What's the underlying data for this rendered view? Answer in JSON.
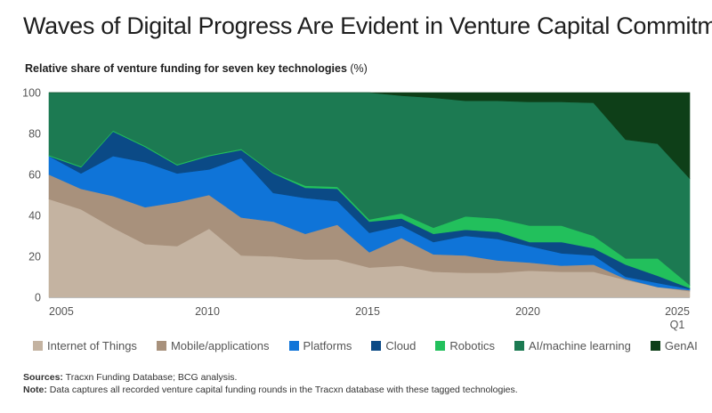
{
  "header": {
    "title": "Waves of Digital Progress Are Evident in Venture Capital Commitments",
    "subtitle": "Relative share of venture funding for seven key technologies",
    "subtitle_unit": "(%)"
  },
  "footer": {
    "sources_label": "Sources:",
    "sources_text": "Tracxn Funding Database; BCG analysis.",
    "note_label": "Note:",
    "note_text": "Data captures all recorded venture capital funding rounds in the Tracxn database with these tagged technologies."
  },
  "chart_data": {
    "type": "area",
    "stacked": true,
    "title": "Relative share of venture funding for seven key technologies (%)",
    "xlabel": "",
    "ylabel": "",
    "x": [
      2005,
      2006,
      2007,
      2008,
      2009,
      2010,
      2011,
      2012,
      2013,
      2014,
      2015,
      2016,
      2017,
      2018,
      2019,
      2020,
      2021,
      2022,
      2023,
      2024,
      2025
    ],
    "x_tick_labels": [
      {
        "x": 2005,
        "label": "2005"
      },
      {
        "x": 2010,
        "label": "2010"
      },
      {
        "x": 2015,
        "label": "2015"
      },
      {
        "x": 2020,
        "label": "2020"
      },
      {
        "x": 2025,
        "label": "2025",
        "sublabel": "Q1"
      }
    ],
    "ylim": [
      0,
      100
    ],
    "y_ticks": [
      0,
      20,
      40,
      60,
      80,
      100
    ],
    "grid": false,
    "legend_position": "bottom",
    "series": [
      {
        "name": "Internet of Things",
        "color": "#c4b3a1",
        "values": [
          48,
          43,
          34,
          26,
          25,
          33.5,
          20.5,
          20,
          18.5,
          18.5,
          14.5,
          15.5,
          12.5,
          12,
          12,
          13,
          12.5,
          12.5,
          8.5,
          5,
          3
        ]
      },
      {
        "name": "Mobile/applications",
        "color": "#a8917c",
        "values": [
          12,
          10,
          15.5,
          18,
          21.5,
          16.5,
          18.5,
          17,
          12.5,
          17,
          7.5,
          13.5,
          8.5,
          8.5,
          6,
          4,
          3,
          3.5,
          0.5,
          0,
          0.5
        ]
      },
      {
        "name": "Platforms",
        "color": "#0f74d8",
        "values": [
          9,
          7.5,
          19.5,
          22,
          14,
          12.5,
          29,
          14,
          17.5,
          11.5,
          9.5,
          6,
          6,
          9.5,
          10.5,
          8,
          6,
          4.5,
          1,
          2,
          0.5
        ]
      },
      {
        "name": "Cloud",
        "color": "#0b4a86",
        "values": [
          0,
          3,
          12,
          7.5,
          4,
          6.5,
          4,
          9.5,
          5,
          6,
          5.5,
          3.5,
          4,
          3,
          3.5,
          2,
          5.5,
          3.5,
          6,
          3.5,
          0.5
        ]
      },
      {
        "name": "Robotics",
        "color": "#22c05c",
        "values": [
          0.5,
          0.5,
          0.5,
          0.5,
          0.5,
          0.5,
          0.5,
          0.5,
          1,
          1,
          1,
          2.5,
          3,
          6.5,
          6.5,
          8,
          8,
          6,
          3,
          8.5,
          1.5
        ]
      },
      {
        "name": "AI/machine learning",
        "color": "#1c7a52",
        "values": [
          30.5,
          36,
          18.5,
          26,
          35,
          30.5,
          27.5,
          39,
          45.5,
          46,
          62,
          57.5,
          63.5,
          56.5,
          57.5,
          60.5,
          60.5,
          65,
          58,
          56,
          52
        ]
      },
      {
        "name": "GenAI",
        "color": "#0e3f18",
        "values": [
          0,
          0,
          0,
          0,
          0,
          0,
          0,
          0,
          0,
          0,
          0,
          1.5,
          2.5,
          4,
          4,
          4.5,
          4.5,
          5,
          23,
          25,
          42
        ]
      }
    ]
  }
}
